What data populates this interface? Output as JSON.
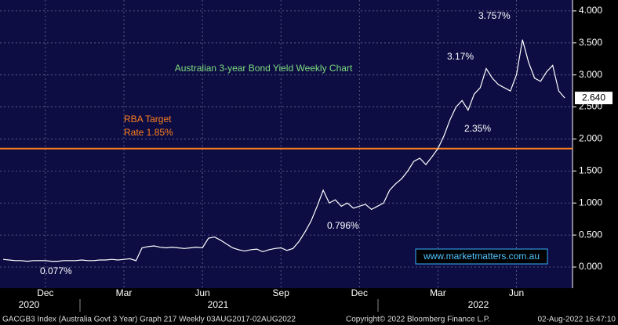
{
  "chart_data": {
    "type": "line",
    "title": "Australian 3-year Bond Yield Weekly Chart",
    "categories": [
      null,
      null,
      null,
      null,
      null,
      null,
      null,
      "Dec",
      null,
      null,
      null,
      null,
      null,
      null,
      null,
      null,
      null,
      null,
      null,
      null,
      "Mar",
      null,
      null,
      null,
      null,
      null,
      null,
      null,
      null,
      null,
      null,
      null,
      null,
      "Jun",
      null,
      null,
      null,
      null,
      null,
      null,
      null,
      null,
      null,
      null,
      null,
      null,
      "Sep",
      null,
      null,
      null,
      null,
      null,
      null,
      null,
      null,
      null,
      null,
      null,
      null,
      "Dec",
      null,
      null,
      null,
      null,
      null,
      null,
      null,
      null,
      null,
      null,
      null,
      null,
      "Mar",
      null,
      null,
      null,
      null,
      null,
      null,
      null,
      null,
      null,
      null,
      null,
      null,
      "Jun",
      null,
      null,
      null,
      null,
      null,
      null,
      null,
      null
    ],
    "years": [
      "2020",
      "2021",
      "2022"
    ],
    "series": [
      {
        "name": "GACGB3 Index",
        "color": "#ffffff",
        "values": [
          0.12,
          0.11,
          0.1,
          0.1,
          0.09,
          0.1,
          0.1,
          0.1,
          0.09,
          0.09,
          0.1,
          0.1,
          0.1,
          0.11,
          0.1,
          0.1,
          0.11,
          0.11,
          0.12,
          0.11,
          0.12,
          0.13,
          0.1,
          0.3,
          0.32,
          0.33,
          0.31,
          0.3,
          0.31,
          0.3,
          0.29,
          0.3,
          0.31,
          0.3,
          0.45,
          0.47,
          0.42,
          0.36,
          0.3,
          0.27,
          0.25,
          0.27,
          0.28,
          0.24,
          0.27,
          0.29,
          0.3,
          0.26,
          0.29,
          0.4,
          0.55,
          0.72,
          0.95,
          1.2,
          1.0,
          1.05,
          0.95,
          1.0,
          0.92,
          0.95,
          0.98,
          0.9,
          0.95,
          1.0,
          1.2,
          1.3,
          1.38,
          1.5,
          1.65,
          1.7,
          1.6,
          1.72,
          1.85,
          2.05,
          2.3,
          2.5,
          2.6,
          2.45,
          2.7,
          2.8,
          3.1,
          2.95,
          2.85,
          2.8,
          2.75,
          3.0,
          3.55,
          3.2,
          2.95,
          2.9,
          3.05,
          3.15,
          2.75,
          2.64
        ]
      }
    ],
    "ylim": [
      -0.33,
      4.17
    ],
    "yticks": [
      {
        "value": 0,
        "label": "0.000"
      },
      {
        "value": 0.5,
        "label": "0.500"
      },
      {
        "value": 1,
        "label": "1.000"
      },
      {
        "value": 1.5,
        "label": "1.500"
      },
      {
        "value": 2,
        "label": "2.000"
      },
      {
        "value": 2.5,
        "label": "2.500"
      },
      {
        "value": 3,
        "label": "3.000"
      },
      {
        "value": 3.5,
        "label": "3.500"
      },
      {
        "value": 4,
        "label": "4.000"
      }
    ],
    "grid": true,
    "reference_line": {
      "value": 1.85,
      "label_1": "RBA Target",
      "label_2": "Rate 1.85%",
      "color": "#ff7f1e"
    },
    "last_value": {
      "value": 2.64,
      "label": "2.640"
    },
    "annotations": [
      "3.757%",
      "3.17%",
      "2.35%",
      "0.796%",
      "0.077%"
    ],
    "watermark": "www.marketmatters.com.au",
    "footer": {
      "left": "GACGB3 Index (Australia Govt 3 Year) Graph 217  Weekly 03AUG2017-02AUG2022",
      "middle": "Copyright© 2022 Bloomberg Finance L.P.",
      "right": "02-Aug-2022 16:47:10"
    }
  }
}
